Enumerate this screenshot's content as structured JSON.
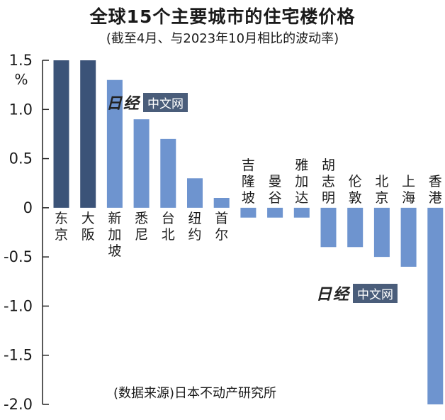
{
  "chart_data": {
    "type": "bar",
    "title": "全球15个主要城市的住宅楼价格",
    "subtitle": "(截至4月、与2023年10月相比的波动率)",
    "ylabel": "%",
    "ylim": [
      -2.0,
      1.5
    ],
    "yticks": [
      "1.5",
      "1.0",
      "0.5",
      "0",
      "-0.5",
      "-1.0",
      "-1.5",
      "-2.0"
    ],
    "grid": false,
    "categories": [
      "东京",
      "大阪",
      "新加坡",
      "悉尼",
      "台北",
      "纽约",
      "首尔",
      "吉隆坡",
      "曼谷",
      "雅加达",
      "胡志明",
      "伦敦",
      "北京",
      "上海",
      "香港"
    ],
    "values": [
      1.5,
      1.5,
      1.3,
      0.9,
      0.7,
      0.3,
      0.1,
      -0.1,
      -0.1,
      -0.1,
      -0.4,
      -0.4,
      -0.5,
      -0.6,
      -2.0
    ],
    "colors": {
      "dark": "#3b5378",
      "light": "#6e94cf",
      "dark_categories": [
        "东京",
        "大阪"
      ]
    },
    "source": "(数据来源)日本不动产研究所"
  },
  "watermark": {
    "mark": "日经",
    "label": "中文网"
  }
}
